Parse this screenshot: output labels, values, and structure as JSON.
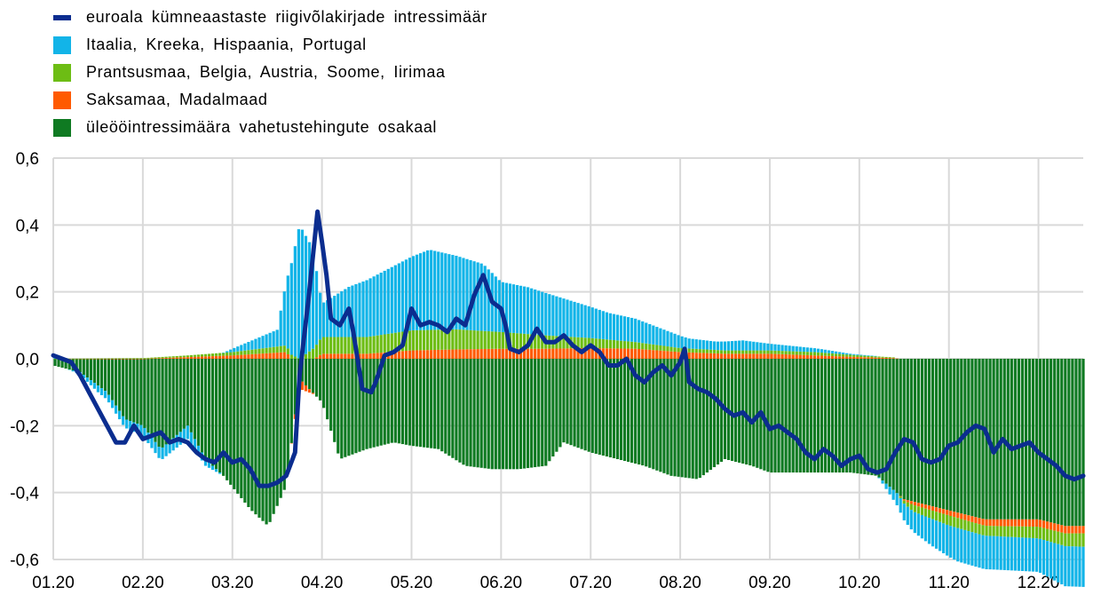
{
  "legend": [
    {
      "label": "euroala kümneaastaste riigivõlakirjade intressimäär",
      "color": "#0b2d8f",
      "shape": "line"
    },
    {
      "label": "Itaalia, Kreeka, Hispaania, Portugal",
      "color": "#12b4e8",
      "shape": "box"
    },
    {
      "label": "Prantsusmaa, Belgia, Austria, Soome, Iirimaa",
      "color": "#6dbd14",
      "shape": "box"
    },
    {
      "label": "Saksamaa, Madalmaad",
      "color": "#ff5a00",
      "shape": "box"
    },
    {
      "label": "üleööintressimäära vahetustehingute osakaal",
      "color": "#0f7a22",
      "shape": "box"
    }
  ],
  "chart_data": {
    "type": "bar",
    "stacked": true,
    "xlim": [
      0,
      11.5
    ],
    "ylim": [
      -0.6,
      0.6
    ],
    "y_ticks": [
      "-0,6",
      "-0,4",
      "-0,2",
      "0,0",
      "0,2",
      "0,4",
      "0,6"
    ],
    "x_ticks": [
      "01.20",
      "02.20",
      "03.20",
      "04.20",
      "05.20",
      "06.20",
      "07.20",
      "08.20",
      "09.20",
      "10.20",
      "11.20",
      "12.20"
    ],
    "grid": true,
    "series": [
      {
        "name": "üleööintressimäära vahetustehingute osakaal",
        "color": "#0f7a22",
        "points": [
          [
            0,
            -0.02
          ],
          [
            0.3,
            -0.04
          ],
          [
            0.6,
            -0.1
          ],
          [
            0.8,
            -0.18
          ],
          [
            1.0,
            -0.2
          ],
          [
            1.2,
            -0.27
          ],
          [
            1.5,
            -0.2
          ],
          [
            1.7,
            -0.3
          ],
          [
            1.9,
            -0.35
          ],
          [
            2.2,
            -0.45
          ],
          [
            2.4,
            -0.5
          ],
          [
            2.6,
            -0.38
          ],
          [
            2.75,
            -0.06
          ],
          [
            3.0,
            -0.13
          ],
          [
            3.2,
            -0.3
          ],
          [
            3.5,
            -0.27
          ],
          [
            3.8,
            -0.25
          ],
          [
            4.0,
            -0.26
          ],
          [
            4.3,
            -0.27
          ],
          [
            4.6,
            -0.32
          ],
          [
            4.9,
            -0.33
          ],
          [
            5.2,
            -0.33
          ],
          [
            5.5,
            -0.32
          ],
          [
            5.7,
            -0.25
          ],
          [
            6.0,
            -0.28
          ],
          [
            6.3,
            -0.3
          ],
          [
            6.6,
            -0.32
          ],
          [
            6.9,
            -0.35
          ],
          [
            7.2,
            -0.36
          ],
          [
            7.5,
            -0.3
          ],
          [
            7.8,
            -0.32
          ],
          [
            8.0,
            -0.34
          ],
          [
            8.3,
            -0.34
          ],
          [
            8.6,
            -0.34
          ],
          [
            8.9,
            -0.34
          ],
          [
            9.2,
            -0.35
          ],
          [
            9.5,
            -0.42
          ],
          [
            9.8,
            -0.44
          ],
          [
            10.1,
            -0.46
          ],
          [
            10.4,
            -0.48
          ],
          [
            10.7,
            -0.48
          ],
          [
            11.0,
            -0.48
          ],
          [
            11.3,
            -0.5
          ],
          [
            11.5,
            -0.5
          ]
        ]
      },
      {
        "name": "Saksamaa, Madalmaad",
        "color": "#ff5a00",
        "points": [
          [
            0,
            0
          ],
          [
            1.0,
            0
          ],
          [
            1.5,
            0.005
          ],
          [
            2.0,
            0.01
          ],
          [
            2.6,
            0.02
          ],
          [
            2.75,
            -0.03
          ],
          [
            3.0,
            0.015
          ],
          [
            3.5,
            0.015
          ],
          [
            4.0,
            0.025
          ],
          [
            4.5,
            0.028
          ],
          [
            5.0,
            0.03
          ],
          [
            5.5,
            0.03
          ],
          [
            6.0,
            0.032
          ],
          [
            6.5,
            0.03
          ],
          [
            7.0,
            0.02
          ],
          [
            7.5,
            0.015
          ],
          [
            8.0,
            0.015
          ],
          [
            8.5,
            0.01
          ],
          [
            9.0,
            0.005
          ],
          [
            9.4,
            0.002
          ],
          [
            9.6,
            -0.01
          ],
          [
            10.0,
            -0.015
          ],
          [
            10.5,
            -0.02
          ],
          [
            11.0,
            -0.022
          ],
          [
            11.5,
            -0.022
          ]
        ]
      },
      {
        "name": "Prantsusmaa, Belgia, Austria, Soome, Iirimaa",
        "color": "#6dbd14",
        "points": [
          [
            0,
            0
          ],
          [
            1.0,
            0.002
          ],
          [
            1.5,
            0.005
          ],
          [
            2.0,
            0.01
          ],
          [
            2.6,
            0.02
          ],
          [
            2.75,
            0
          ],
          [
            3.0,
            0.05
          ],
          [
            3.5,
            0.05
          ],
          [
            4.0,
            0.06
          ],
          [
            4.5,
            0.06
          ],
          [
            5.0,
            0.05
          ],
          [
            5.5,
            0.04
          ],
          [
            6.0,
            0.03
          ],
          [
            6.5,
            0.02
          ],
          [
            7.0,
            0.012
          ],
          [
            7.5,
            0.01
          ],
          [
            8.0,
            0.01
          ],
          [
            8.5,
            0.01
          ],
          [
            9.0,
            0.005
          ],
          [
            9.4,
            0.002
          ],
          [
            9.6,
            -0.02
          ],
          [
            10.0,
            -0.03
          ],
          [
            10.5,
            -0.03
          ],
          [
            11.0,
            -0.035
          ],
          [
            11.5,
            -0.04
          ]
        ]
      },
      {
        "name": "Itaalia, Kreeka, Hispaania, Portugal",
        "color": "#12b4e8",
        "points": [
          [
            0,
            0.01
          ],
          [
            0.5,
            -0.02
          ],
          [
            1.0,
            -0.03
          ],
          [
            1.5,
            -0.04
          ],
          [
            2.0,
            0.01
          ],
          [
            2.5,
            0.05
          ],
          [
            2.75,
            0.4
          ],
          [
            2.9,
            0.3
          ],
          [
            3.0,
            0.1
          ],
          [
            3.3,
            0.15
          ],
          [
            3.6,
            0.18
          ],
          [
            3.9,
            0.21
          ],
          [
            4.2,
            0.24
          ],
          [
            4.5,
            0.22
          ],
          [
            4.8,
            0.2
          ],
          [
            5.0,
            0.15
          ],
          [
            5.3,
            0.14
          ],
          [
            5.6,
            0.12
          ],
          [
            5.9,
            0.1
          ],
          [
            6.2,
            0.08
          ],
          [
            6.5,
            0.07
          ],
          [
            6.8,
            0.05
          ],
          [
            7.1,
            0.03
          ],
          [
            7.4,
            0.025
          ],
          [
            7.7,
            0.03
          ],
          [
            8.0,
            0.02
          ],
          [
            8.3,
            0.015
          ],
          [
            8.6,
            0.01
          ],
          [
            8.9,
            0.003
          ],
          [
            9.2,
            0.001
          ],
          [
            9.5,
            -0.05
          ],
          [
            9.8,
            -0.08
          ],
          [
            10.1,
            -0.1
          ],
          [
            10.4,
            -0.1
          ],
          [
            10.7,
            -0.1
          ],
          [
            11.0,
            -0.1
          ],
          [
            11.3,
            -0.12
          ],
          [
            11.5,
            -0.12
          ]
        ]
      },
      {
        "name": "euroala kümneaastaste riigivõlakirjade intressimäär",
        "color": "#0b2d8f",
        "type": "line",
        "points": [
          [
            0,
            0.01
          ],
          [
            0.1,
            0
          ],
          [
            0.2,
            -0.01
          ],
          [
            0.3,
            -0.05
          ],
          [
            0.4,
            -0.1
          ],
          [
            0.5,
            -0.15
          ],
          [
            0.6,
            -0.2
          ],
          [
            0.7,
            -0.25
          ],
          [
            0.8,
            -0.25
          ],
          [
            0.9,
            -0.2
          ],
          [
            1.0,
            -0.24
          ],
          [
            1.1,
            -0.23
          ],
          [
            1.2,
            -0.22
          ],
          [
            1.3,
            -0.25
          ],
          [
            1.4,
            -0.24
          ],
          [
            1.5,
            -0.25
          ],
          [
            1.6,
            -0.28
          ],
          [
            1.7,
            -0.3
          ],
          [
            1.8,
            -0.31
          ],
          [
            1.9,
            -0.28
          ],
          [
            2.0,
            -0.31
          ],
          [
            2.1,
            -0.3
          ],
          [
            2.2,
            -0.33
          ],
          [
            2.3,
            -0.38
          ],
          [
            2.4,
            -0.38
          ],
          [
            2.5,
            -0.37
          ],
          [
            2.6,
            -0.35
          ],
          [
            2.7,
            -0.28
          ],
          [
            2.75,
            -0.05
          ],
          [
            2.85,
            0.18
          ],
          [
            2.95,
            0.44
          ],
          [
            3.0,
            0.35
          ],
          [
            3.05,
            0.25
          ],
          [
            3.1,
            0.12
          ],
          [
            3.2,
            0.1
          ],
          [
            3.3,
            0.15
          ],
          [
            3.35,
            0.08
          ],
          [
            3.45,
            -0.09
          ],
          [
            3.55,
            -0.1
          ],
          [
            3.6,
            -0.07
          ],
          [
            3.7,
            0.01
          ],
          [
            3.8,
            0.02
          ],
          [
            3.9,
            0.04
          ],
          [
            4.0,
            0.15
          ],
          [
            4.1,
            0.1
          ],
          [
            4.2,
            0.11
          ],
          [
            4.3,
            0.1
          ],
          [
            4.4,
            0.08
          ],
          [
            4.5,
            0.12
          ],
          [
            4.6,
            0.1
          ],
          [
            4.7,
            0.19
          ],
          [
            4.8,
            0.25
          ],
          [
            4.9,
            0.17
          ],
          [
            5.0,
            0.15
          ],
          [
            5.05,
            0.1
          ],
          [
            5.1,
            0.03
          ],
          [
            5.2,
            0.02
          ],
          [
            5.3,
            0.04
          ],
          [
            5.4,
            0.09
          ],
          [
            5.5,
            0.05
          ],
          [
            5.6,
            0.05
          ],
          [
            5.7,
            0.07
          ],
          [
            5.8,
            0.04
          ],
          [
            5.9,
            0.02
          ],
          [
            6.0,
            0.04
          ],
          [
            6.1,
            0.02
          ],
          [
            6.2,
            -0.02
          ],
          [
            6.3,
            -0.02
          ],
          [
            6.4,
            0
          ],
          [
            6.5,
            -0.05
          ],
          [
            6.6,
            -0.07
          ],
          [
            6.7,
            -0.04
          ],
          [
            6.8,
            -0.02
          ],
          [
            6.9,
            -0.05
          ],
          [
            7.0,
            -0.01
          ],
          [
            7.05,
            0.03
          ],
          [
            7.1,
            -0.07
          ],
          [
            7.2,
            -0.09
          ],
          [
            7.3,
            -0.1
          ],
          [
            7.4,
            -0.12
          ],
          [
            7.5,
            -0.15
          ],
          [
            7.6,
            -0.17
          ],
          [
            7.7,
            -0.16
          ],
          [
            7.8,
            -0.19
          ],
          [
            7.9,
            -0.16
          ],
          [
            8.0,
            -0.21
          ],
          [
            8.1,
            -0.2
          ],
          [
            8.2,
            -0.22
          ],
          [
            8.3,
            -0.24
          ],
          [
            8.4,
            -0.28
          ],
          [
            8.5,
            -0.3
          ],
          [
            8.6,
            -0.27
          ],
          [
            8.7,
            -0.29
          ],
          [
            8.8,
            -0.32
          ],
          [
            8.9,
            -0.3
          ],
          [
            9.0,
            -0.29
          ],
          [
            9.1,
            -0.33
          ],
          [
            9.2,
            -0.34
          ],
          [
            9.3,
            -0.33
          ],
          [
            9.4,
            -0.28
          ],
          [
            9.5,
            -0.24
          ],
          [
            9.6,
            -0.25
          ],
          [
            9.7,
            -0.3
          ],
          [
            9.8,
            -0.31
          ],
          [
            9.9,
            -0.3
          ],
          [
            10.0,
            -0.26
          ],
          [
            10.1,
            -0.25
          ],
          [
            10.2,
            -0.22
          ],
          [
            10.3,
            -0.2
          ],
          [
            10.4,
            -0.21
          ],
          [
            10.5,
            -0.28
          ],
          [
            10.6,
            -0.24
          ],
          [
            10.7,
            -0.27
          ],
          [
            10.8,
            -0.26
          ],
          [
            10.9,
            -0.25
          ],
          [
            11.0,
            -0.28
          ],
          [
            11.1,
            -0.3
          ],
          [
            11.2,
            -0.32
          ],
          [
            11.3,
            -0.35
          ],
          [
            11.4,
            -0.36
          ],
          [
            11.5,
            -0.35
          ]
        ]
      }
    ]
  }
}
